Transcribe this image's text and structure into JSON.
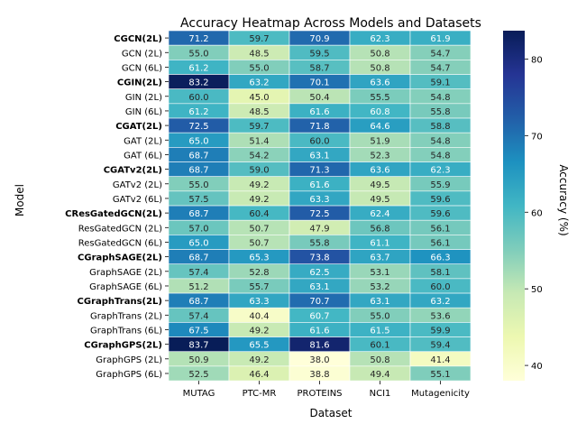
{
  "chart_data": {
    "type": "heatmap",
    "title": "Accuracy Heatmap Across Models and Datasets",
    "xlabel": "Dataset",
    "ylabel": "Model",
    "colorbar_label": "Accuracy (%)",
    "colorbar_ticks": [
      40,
      50,
      60,
      70,
      80
    ],
    "vmin": 38.0,
    "vmax": 83.7,
    "columns": [
      "MUTAG",
      "PTC-MR",
      "PROTEINS",
      "NCI1",
      "Mutagenicity"
    ],
    "rows": [
      {
        "label": "CGCN(2L)",
        "bold": true,
        "values": [
          71.2,
          59.7,
          70.9,
          62.3,
          61.9
        ]
      },
      {
        "label": "GCN (2L)",
        "bold": false,
        "values": [
          55.0,
          48.5,
          59.5,
          50.8,
          54.7
        ]
      },
      {
        "label": "GCN (6L)",
        "bold": false,
        "values": [
          61.2,
          55.0,
          58.7,
          50.8,
          54.7
        ]
      },
      {
        "label": "CGIN(2L)",
        "bold": true,
        "values": [
          83.2,
          63.2,
          70.1,
          63.6,
          59.1
        ]
      },
      {
        "label": "GIN (2L)",
        "bold": false,
        "values": [
          60.0,
          45.0,
          50.4,
          55.5,
          54.8
        ]
      },
      {
        "label": "GIN (6L)",
        "bold": false,
        "values": [
          61.2,
          48.5,
          61.6,
          60.8,
          55.8
        ]
      },
      {
        "label": "CGAT(2L)",
        "bold": true,
        "values": [
          72.5,
          59.7,
          71.8,
          64.6,
          58.8
        ]
      },
      {
        "label": "GAT (2L)",
        "bold": false,
        "values": [
          65.0,
          51.4,
          60.0,
          51.9,
          54.8
        ]
      },
      {
        "label": "GAT (6L)",
        "bold": false,
        "values": [
          68.7,
          54.2,
          63.1,
          52.3,
          54.8
        ]
      },
      {
        "label": "CGATv2(2L)",
        "bold": true,
        "values": [
          68.7,
          59.0,
          71.3,
          63.6,
          62.3
        ]
      },
      {
        "label": "GATv2 (2L)",
        "bold": false,
        "values": [
          55.0,
          49.2,
          61.6,
          49.5,
          55.9
        ]
      },
      {
        "label": "GATv2 (6L)",
        "bold": false,
        "values": [
          57.5,
          49.2,
          63.3,
          49.5,
          59.6
        ]
      },
      {
        "label": "CResGatedGCN(2L)",
        "bold": true,
        "values": [
          68.7,
          60.4,
          72.5,
          62.4,
          59.6
        ]
      },
      {
        "label": "ResGatedGCN (2L)",
        "bold": false,
        "values": [
          57.0,
          50.7,
          47.9,
          56.8,
          56.1
        ]
      },
      {
        "label": "ResGatedGCN (6L)",
        "bold": false,
        "values": [
          65.0,
          50.7,
          55.8,
          61.1,
          56.1
        ]
      },
      {
        "label": "CGraphSAGE(2L)",
        "bold": true,
        "values": [
          68.7,
          65.3,
          73.8,
          63.7,
          66.3
        ]
      },
      {
        "label": "GraphSAGE (2L)",
        "bold": false,
        "values": [
          57.4,
          52.8,
          62.5,
          53.1,
          58.1
        ]
      },
      {
        "label": "GraphSAGE (6L)",
        "bold": false,
        "values": [
          51.2,
          55.7,
          63.1,
          53.2,
          60.0
        ]
      },
      {
        "label": "CGraphTrans(2L)",
        "bold": true,
        "values": [
          68.7,
          63.3,
          70.7,
          63.1,
          63.2
        ]
      },
      {
        "label": "GraphTrans (2L)",
        "bold": false,
        "values": [
          57.4,
          40.4,
          60.7,
          55.0,
          53.6
        ]
      },
      {
        "label": "GraphTrans (6L)",
        "bold": false,
        "values": [
          67.5,
          49.2,
          61.6,
          61.5,
          59.9
        ]
      },
      {
        "label": "CGraphGPS(2L)",
        "bold": true,
        "values": [
          83.7,
          65.5,
          81.6,
          60.1,
          59.4
        ]
      },
      {
        "label": "GraphGPS (2L)",
        "bold": false,
        "values": [
          50.9,
          49.2,
          38.0,
          50.8,
          41.4
        ]
      },
      {
        "label": "GraphGPS (6L)",
        "bold": false,
        "values": [
          52.5,
          46.4,
          38.8,
          49.4,
          55.1
        ]
      }
    ]
  }
}
